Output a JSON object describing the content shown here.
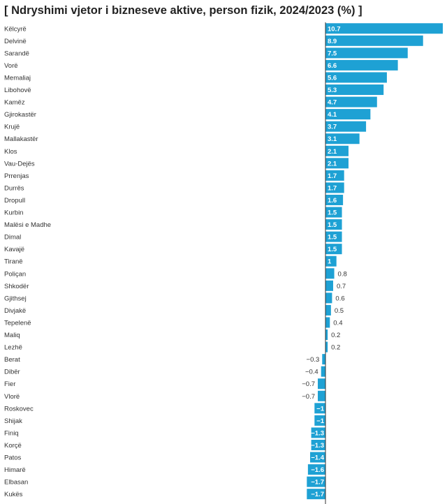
{
  "chart_data": {
    "type": "bar",
    "orientation": "horizontal",
    "title": "[ Ndryshimi vjetor i bizneseve aktive, person fizik, 2024/2023 (%) ]",
    "bar_color": "#1ea1d4",
    "categories": [
      "Këlcyrë",
      "Delvinë",
      "Sarandë",
      "Vorë",
      "Memaliaj",
      "Libohovë",
      "Kamëz",
      "Gjirokastër",
      "Krujë",
      "Mallakastër",
      "Klos",
      "Vau-Dejës",
      "Prrenjas",
      "Durrës",
      "Dropull",
      "Kurbin",
      "Malësi e Madhe",
      "Dimal",
      "Kavajë",
      "Tiranë",
      "Poliçan",
      "Shkodër",
      "Gjithsej",
      "Divjakë",
      "Tepelenë",
      "Maliq",
      "Lezhë",
      "Berat",
      "Dibër",
      "Fier",
      "Vlorë",
      "Roskovec",
      "Shijak",
      "Finiq",
      "Korçë",
      "Patos",
      "Himarë",
      "Elbasan",
      "Kukës"
    ],
    "values": [
      10.7,
      8.9,
      7.5,
      6.6,
      5.6,
      5.3,
      4.7,
      4.1,
      3.7,
      3.1,
      2.1,
      2.1,
      1.7,
      1.7,
      1.6,
      1.5,
      1.5,
      1.5,
      1.5,
      1,
      0.8,
      0.7,
      0.6,
      0.5,
      0.4,
      0.2,
      0.2,
      -0.3,
      -0.4,
      -0.7,
      -0.7,
      -1,
      -1,
      -1.3,
      -1.3,
      -1.4,
      -1.6,
      -1.7,
      -1.7
    ],
    "value_labels": [
      "10.7",
      "8.9",
      "7.5",
      "6.6",
      "5.6",
      "5.3",
      "4.7",
      "4.1",
      "3.7",
      "3.1",
      "2.1",
      "2.1",
      "1.7",
      "1.7",
      "1.6",
      "1.5",
      "1.5",
      "1.5",
      "1.5",
      "1",
      "0.8",
      "0.7",
      "0.6",
      "0.5",
      "0.4",
      "0.2",
      "0.2",
      "−0.3",
      "−0.4",
      "−0.7",
      "−0.7",
      "−1",
      "−1",
      "−1.3",
      "−1.3",
      "−1.4",
      "−1.6",
      "−1.7",
      "−1.7"
    ],
    "xlim": [
      -1.7,
      10.7
    ],
    "grid": false,
    "legend": "none"
  }
}
